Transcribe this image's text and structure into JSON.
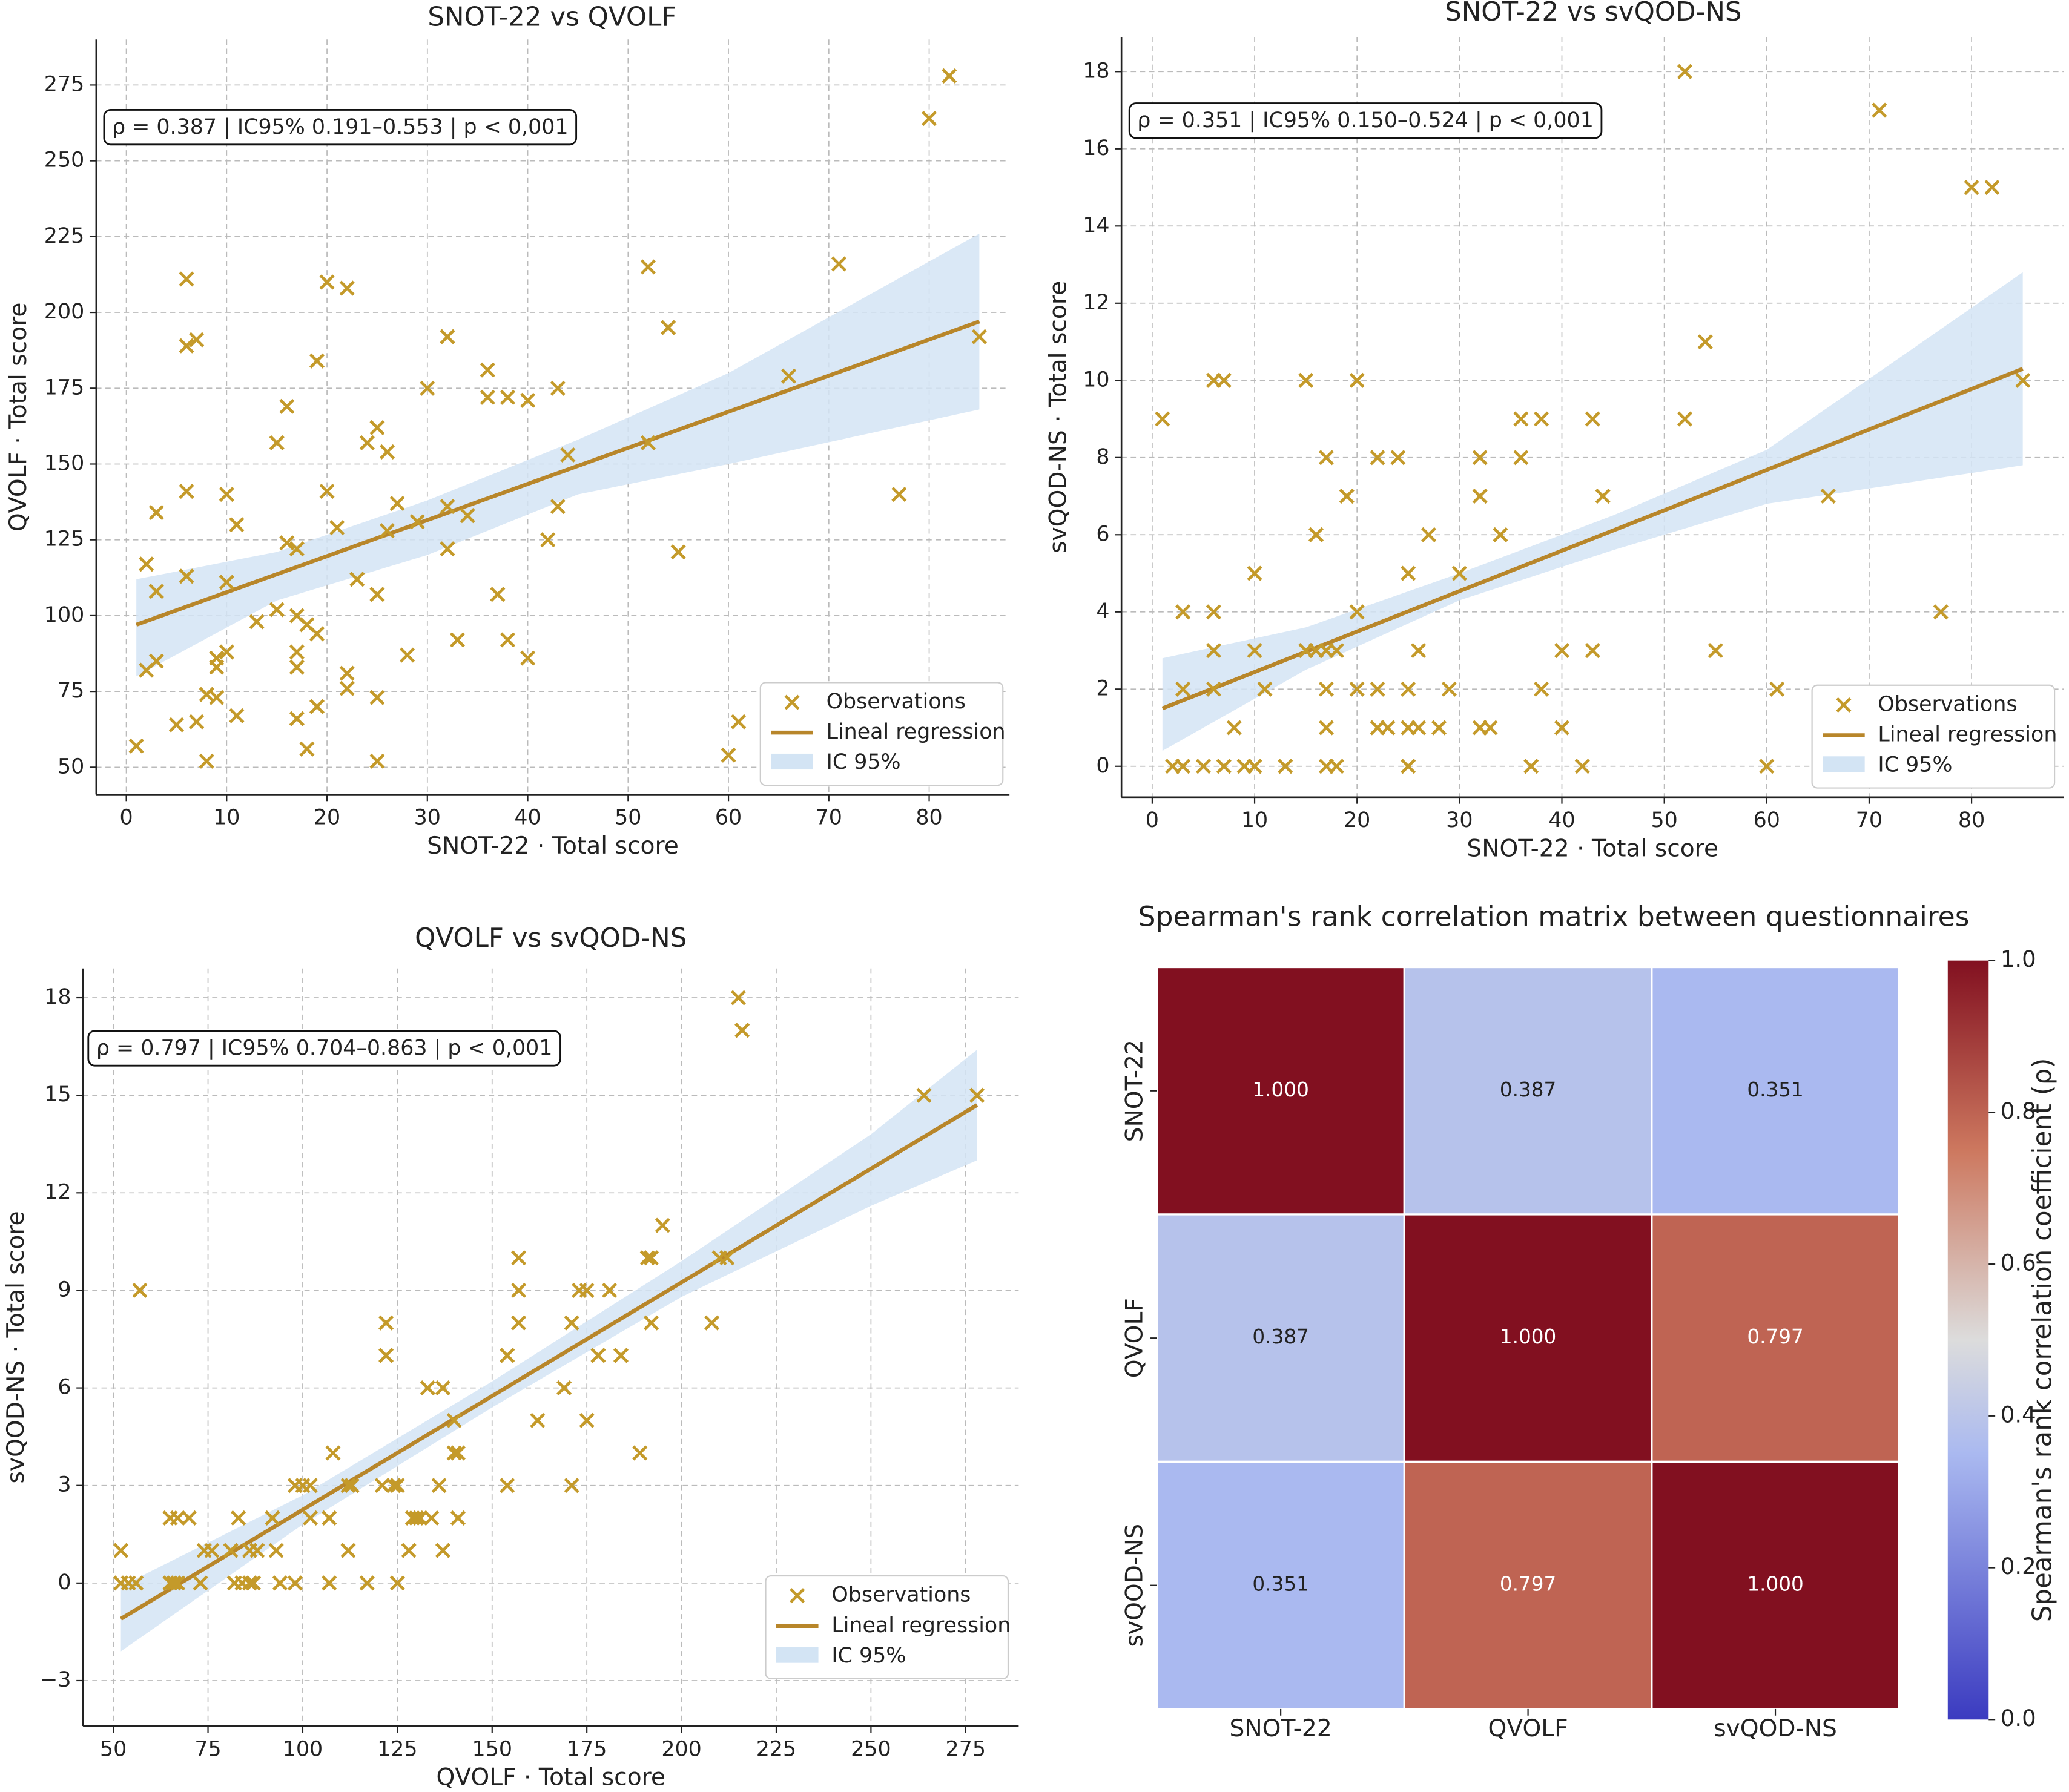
{
  "chart_data": [
    {
      "type": "scatter",
      "title": "SNOT-22 vs QVOLF",
      "x_label": "SNOT-22 · Total score",
      "y_label": "QVOLF · Total score",
      "annotation": "ρ = 0.387  |  IC95% 0.191–0.553  |  p < 0,001",
      "xlim": [
        -3,
        88
      ],
      "ylim": [
        41,
        290
      ],
      "xticks": [
        0,
        10,
        20,
        30,
        40,
        50,
        60,
        70,
        80
      ],
      "yticks": [
        50,
        75,
        100,
        125,
        150,
        175,
        200,
        225,
        250,
        275
      ],
      "grid": true,
      "legend": "lower right",
      "series": [
        {
          "name": "Observations",
          "color": "#c49a2a",
          "x": [
            80,
            82,
            85,
            71,
            77,
            66,
            60,
            61,
            52,
            54,
            55,
            52,
            44,
            43,
            43,
            42,
            40,
            38,
            36,
            36,
            40,
            38,
            37,
            33,
            34,
            32,
            32,
            32,
            30,
            29,
            28,
            27,
            26,
            26,
            25,
            24,
            25,
            25,
            25,
            23,
            22,
            22,
            22,
            21,
            20,
            20,
            19,
            19,
            19,
            18,
            18,
            17,
            17,
            17,
            17,
            17,
            16,
            16,
            15,
            15,
            13,
            11,
            11,
            10,
            10,
            10,
            9,
            9,
            8,
            8,
            9,
            7,
            7,
            6,
            6,
            6,
            6,
            5,
            3,
            3,
            3,
            2,
            2,
            1
          ],
          "y": [
            264,
            278,
            192,
            216,
            140,
            179,
            54,
            65,
            215,
            195,
            121,
            157,
            153,
            175,
            136,
            125,
            171,
            172,
            181,
            172,
            86,
            92,
            107,
            92,
            133,
            136,
            122,
            192,
            175,
            131,
            87,
            137,
            154,
            128,
            162,
            157,
            107,
            73,
            52,
            112,
            208,
            81,
            76,
            129,
            210,
            141,
            184,
            94,
            70,
            97,
            56,
            100,
            88,
            83,
            66,
            122,
            124,
            169,
            157,
            102,
            98,
            130,
            67,
            140,
            111,
            88,
            86,
            83,
            74,
            52,
            73,
            191,
            65,
            211,
            189,
            141,
            113,
            64,
            134,
            108,
            85,
            117,
            82,
            57
          ]
        }
      ],
      "regression": {
        "name": "Lineal regression",
        "color": "#b8862a",
        "x": [
          1,
          85
        ],
        "y": [
          97,
          197
        ]
      },
      "confidence_band": {
        "name": "IC 95%",
        "color": "#d3e4f4",
        "x": [
          1,
          15,
          30,
          45,
          60,
          85
        ],
        "lower": [
          80,
          105,
          120,
          140,
          150,
          168
        ],
        "upper": [
          112,
          121,
          138,
          158,
          180,
          226
        ]
      }
    },
    {
      "type": "scatter",
      "title": "SNOT-22 vs svQOD-NS",
      "x_label": "SNOT-22 · Total score",
      "y_label": "svQOD-NS · Total score",
      "annotation": "ρ = 0.351  |  IC95% 0.150–0.524  |  p < 0,001",
      "xlim": [
        -3,
        89
      ],
      "ylim": [
        -0.8,
        18.9
      ],
      "xticks": [
        0,
        10,
        20,
        30,
        40,
        50,
        60,
        70,
        80
      ],
      "yticks": [
        0,
        2,
        4,
        6,
        8,
        10,
        12,
        14,
        16,
        18
      ],
      "grid": true,
      "legend": "lower right",
      "series": [
        {
          "name": "Observations",
          "color": "#c49a2a",
          "x": [
            52,
            71,
            80,
            82,
            85,
            54,
            52,
            66,
            77,
            55,
            61,
            60,
            44,
            43,
            43,
            42,
            40,
            40,
            38,
            38,
            37,
            36,
            36,
            34,
            33,
            32,
            32,
            32,
            30,
            29,
            28,
            27,
            26,
            26,
            25,
            25,
            25,
            25,
            24,
            23,
            22,
            22,
            22,
            20,
            20,
            20,
            19,
            18,
            18,
            17,
            17,
            17,
            17,
            17,
            16,
            16,
            15,
            15,
            13,
            11,
            10,
            10,
            10,
            9,
            8,
            7,
            7,
            6,
            6,
            6,
            6,
            5,
            3,
            3,
            3,
            2,
            1
          ],
          "y": [
            18,
            17,
            15,
            15,
            10,
            11,
            9,
            7,
            4,
            3,
            2,
            0,
            7,
            9,
            3,
            0,
            3,
            1,
            9,
            2,
            0,
            9,
            8,
            6,
            1,
            8,
            7,
            1,
            5,
            2,
            1,
            6,
            3,
            1,
            5,
            2,
            1,
            0,
            8,
            1,
            8,
            2,
            1,
            10,
            4,
            2,
            7,
            3,
            0,
            8,
            3,
            2,
            1,
            0,
            6,
            3,
            10,
            3,
            0,
            2,
            5,
            3,
            0,
            0,
            1,
            10,
            0,
            10,
            4,
            3,
            2,
            0,
            4,
            2,
            0,
            0,
            9
          ]
        }
      ],
      "regression": {
        "name": "Lineal regression",
        "color": "#b8862a",
        "x": [
          1,
          85
        ],
        "y": [
          1.5,
          10.3
        ]
      },
      "confidence_band": {
        "name": "IC 95%",
        "color": "#d3e4f4",
        "x": [
          1,
          15,
          30,
          45,
          60,
          85
        ],
        "lower": [
          0.4,
          2.5,
          4.3,
          5.6,
          6.8,
          7.8
        ],
        "upper": [
          2.8,
          3.6,
          5.0,
          6.5,
          8.2,
          12.8
        ]
      }
    },
    {
      "type": "scatter",
      "title": "QVOLF vs svQOD-NS",
      "x_label": "QVOLF · Total score",
      "y_label": "svQOD-NS · Total score",
      "annotation": "ρ = 0.797  |  IC95% 0.704–0.863  |  p < 0,001",
      "xlim": [
        42,
        289
      ],
      "ylim": [
        -4.4,
        18.9
      ],
      "xticks": [
        50,
        75,
        100,
        125,
        150,
        175,
        200,
        225,
        250,
        275
      ],
      "yticks": [
        {
          "value": -3,
          "label": "−3"
        },
        0,
        3,
        6,
        9,
        12,
        15,
        18
      ],
      "grid": true,
      "legend": "lower right",
      "series": [
        {
          "name": "Observations",
          "color": "#c49a2a",
          "x": [
            215,
            216,
            264,
            278,
            195,
            191,
            192,
            210,
            212,
            157,
            157,
            157,
            173,
            175,
            181,
            171,
            192,
            208,
            57,
            122,
            122,
            178,
            184,
            154,
            169,
            133,
            137,
            162,
            175,
            140,
            140,
            141,
            189,
            108,
            112,
            113,
            98,
            100,
            102,
            121,
            124,
            125,
            136,
            154,
            171,
            129,
            130,
            131,
            134,
            141,
            92,
            102,
            107,
            65,
            67,
            70,
            83,
            74,
            76,
            81,
            86,
            88,
            93,
            112,
            128,
            137,
            52,
            73,
            82,
            84,
            86,
            87,
            94,
            98,
            107,
            117,
            125,
            66,
            65,
            67,
            52,
            54,
            56
          ],
          "y": [
            18,
            17,
            15,
            15,
            11,
            10,
            10,
            10,
            10,
            10,
            9,
            8,
            9,
            9,
            9,
            8,
            8,
            8,
            9,
            8,
            7,
            7,
            7,
            7,
            6,
            6,
            6,
            5,
            5,
            5,
            4,
            4,
            4,
            4,
            3,
            3,
            3,
            3,
            3,
            3,
            3,
            3,
            3,
            3,
            3,
            2,
            2,
            2,
            2,
            2,
            2,
            2,
            2,
            2,
            2,
            2,
            2,
            1,
            1,
            1,
            1,
            1,
            1,
            1,
            1,
            1,
            1,
            0,
            0,
            0,
            0,
            0,
            0,
            0,
            0,
            0,
            0,
            0,
            0,
            0,
            0,
            0,
            0
          ]
        }
      ],
      "regression": {
        "name": "Lineal regression",
        "color": "#b8862a",
        "x": [
          52,
          278
        ],
        "y": [
          -1.1,
          14.7
        ]
      },
      "confidence_band": {
        "name": "IC 95%",
        "color": "#d3e4f4",
        "x": [
          52,
          100,
          150,
          200,
          250,
          278
        ],
        "lower": [
          -2.1,
          1.8,
          5.4,
          8.8,
          11.6,
          13.0
        ],
        "upper": [
          -0.1,
          2.7,
          6.2,
          9.9,
          13.8,
          16.4
        ]
      }
    },
    {
      "type": "heatmap",
      "title": "Spearman's rank correlation matrix between questionnaires",
      "x_categories": [
        "SNOT-22",
        "QVOLF",
        "svQOD-NS"
      ],
      "y_categories": [
        "SNOT-22",
        "QVOLF",
        "svQOD-NS"
      ],
      "values": [
        [
          1,
          0.387,
          0.351
        ],
        [
          0.387,
          1,
          0.797
        ],
        [
          0.351,
          0.797,
          1
        ]
      ],
      "value_labels": [
        [
          "1.000",
          "0.387",
          "0.351"
        ],
        [
          "0.387",
          "1.000",
          "0.797"
        ],
        [
          "0.351",
          "0.797",
          "1.000"
        ]
      ],
      "colorbar_label": "Spearman's rank correlation coefficient (ρ)",
      "clim": [
        0,
        1
      ],
      "cticks": [
        {
          "value": 0,
          "label": "0.0"
        },
        0.2,
        0.4,
        0.6,
        0.8,
        {
          "value": 1,
          "label": "1.0"
        }
      ]
    }
  ]
}
